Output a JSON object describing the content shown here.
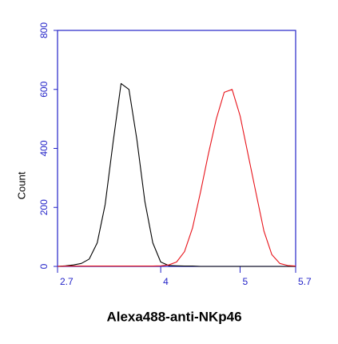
{
  "chart_data": {
    "type": "line",
    "xlabel": "Alexa488-anti-NKp46",
    "ylabel": "Count",
    "x": [
      2.7,
      2.8,
      2.9,
      3.0,
      3.1,
      3.2,
      3.3,
      3.4,
      3.5,
      3.6,
      3.7,
      3.8,
      3.9,
      4.0,
      4.1,
      4.2,
      4.3,
      4.4,
      4.5,
      4.6,
      4.7,
      4.8,
      4.9,
      5.0,
      5.1,
      5.2,
      5.3,
      5.4,
      5.5,
      5.6,
      5.7
    ],
    "series": [
      {
        "color": "#000000",
        "values": [
          0,
          2,
          5,
          10,
          25,
          80,
          210,
          420,
          620,
          600,
          430,
          220,
          80,
          15,
          3,
          2,
          1,
          1,
          0,
          0,
          0,
          0,
          0,
          0,
          0,
          0,
          0,
          0,
          0,
          0,
          0
        ]
      },
      {
        "color": "#e8141b",
        "values": [
          0,
          1,
          1,
          1,
          1,
          1,
          1,
          1,
          1,
          1,
          1,
          1,
          1,
          2,
          5,
          15,
          50,
          130,
          250,
          380,
          500,
          590,
          600,
          510,
          380,
          250,
          120,
          40,
          10,
          3,
          1
        ]
      }
    ],
    "xlim": [
      2.7,
      5.7
    ],
    "xticks": [
      2.7,
      4,
      5,
      5.7
    ],
    "ylim": [
      0,
      800
    ],
    "yticks": [
      0,
      200,
      400,
      600,
      800
    ],
    "frame_color": "#2323c8"
  }
}
